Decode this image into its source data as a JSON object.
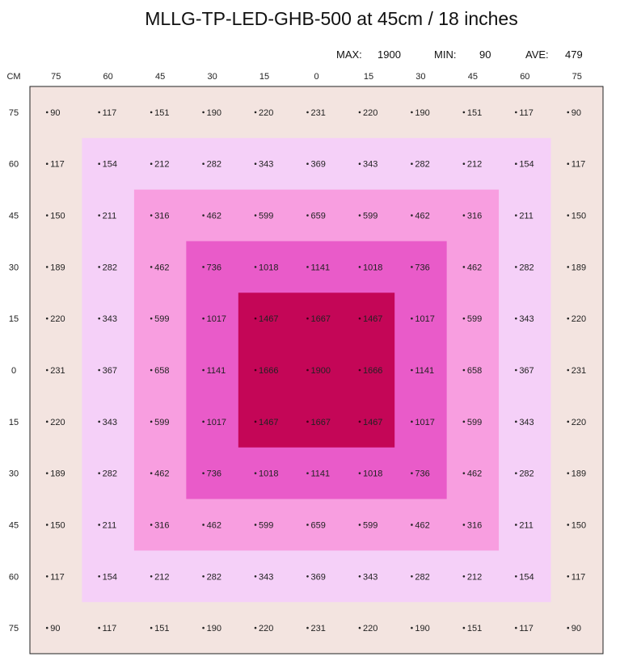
{
  "title": "MLLG-TP-LED-GHB-500 at 45cm / 18 inches",
  "stats": {
    "max_label": "MAX:",
    "max_value": "1900",
    "min_label": "MIN:",
    "min_value": "90",
    "ave_label": "AVE:",
    "ave_value": "479"
  },
  "chart_data": {
    "type": "heatmap",
    "title": "MLLG-TP-LED-GHB-500 at 45cm / 18 inches",
    "unit_label": "CM",
    "x_ticks": [
      "75",
      "60",
      "45",
      "30",
      "15",
      "0",
      "15",
      "30",
      "45",
      "60",
      "75"
    ],
    "y_ticks": [
      "75",
      "60",
      "45",
      "30",
      "15",
      "0",
      "15",
      "30",
      "45",
      "60",
      "75"
    ],
    "values": [
      [
        90,
        117,
        151,
        190,
        220,
        231,
        220,
        190,
        151,
        117,
        90
      ],
      [
        117,
        154,
        212,
        282,
        343,
        369,
        343,
        282,
        212,
        154,
        117
      ],
      [
        150,
        211,
        316,
        462,
        599,
        659,
        599,
        462,
        316,
        211,
        150
      ],
      [
        189,
        282,
        462,
        736,
        1018,
        1141,
        1018,
        736,
        462,
        282,
        189
      ],
      [
        220,
        343,
        599,
        1017,
        1467,
        1667,
        1467,
        1017,
        599,
        343,
        220
      ],
      [
        231,
        367,
        658,
        1141,
        1666,
        1900,
        1666,
        1141,
        658,
        367,
        231
      ],
      [
        220,
        343,
        599,
        1017,
        1467,
        1667,
        1467,
        1017,
        599,
        343,
        220
      ],
      [
        189,
        282,
        462,
        736,
        1018,
        1141,
        1018,
        736,
        462,
        282,
        189
      ],
      [
        150,
        211,
        316,
        462,
        599,
        659,
        599,
        462,
        316,
        211,
        150
      ],
      [
        117,
        154,
        212,
        282,
        343,
        369,
        343,
        282,
        212,
        154,
        117
      ],
      [
        90,
        117,
        151,
        190,
        220,
        231,
        220,
        190,
        151,
        117,
        90
      ]
    ],
    "zone_colors": [
      "#f3e4e0",
      "#f5d0f8",
      "#f89ee0",
      "#e95bc9",
      "#c40657"
    ],
    "max": 1900,
    "min": 90,
    "ave": 479
  }
}
